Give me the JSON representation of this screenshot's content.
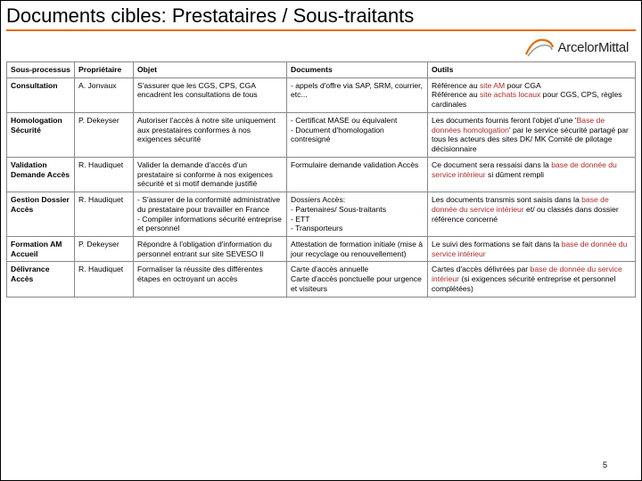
{
  "title": "Documents cibles: Prestataires / Sous-traitants",
  "logo_text": "ArcelorMittal",
  "pagenum": "5",
  "colors": {
    "accent": "#e76a00",
    "highlight": "#b02a2a",
    "border": "#888888"
  },
  "table": {
    "headers": {
      "c1": "Sous-processus",
      "c2": "Propriétaire",
      "c3": "Objet",
      "c4": "Documents",
      "c5": "Outils"
    },
    "rows": [
      {
        "proc": "Consultation",
        "owner": "A. Jonvaux",
        "objet": "S'assurer que les CGS, CPS, CGA encadrent les consultations de tous",
        "docs": "- appels d'offre via SAP, SRM, courrier, etc...",
        "outils_pre": "Référence au ",
        "outils_hl1": "site AM",
        "outils_mid": " pour CGA\nRéférence au ",
        "outils_hl2": "site achats locaux",
        "outils_post": " pour CGS, CPS, règles cardinales"
      },
      {
        "proc": "Homologation Sécurité",
        "owner": "P. Dekeyser",
        "objet": "Autoriser l'accès à notre site uniquement aux prestataires conformes à nos exigences sécurité",
        "docs": "- Certificat MASE ou équivalent\n- Document d'homologation contresigné",
        "outils_pre": "Les documents fournis feront l'objet d'une '",
        "outils_hl1": "Base de données homologation",
        "outils_mid": "' par le service sécurité partagé par tous les acteurs des sites DK/ MK Comité de pilotage décisionnaire",
        "outils_hl2": "",
        "outils_post": ""
      },
      {
        "proc": "Validation Demande Accès",
        "owner": "R. Haudiquet",
        "objet": "Valider la demande d'accès d'un prestataire si conforme à nos exigences sécurité et si motif demande justifié",
        "docs": "Formulaire demande validation Accès",
        "outils_pre": "Ce document sera ressaisi dans la ",
        "outils_hl1": "base de donnée du service intérieur",
        "outils_mid": " si dûment rempli",
        "outils_hl2": "",
        "outils_post": ""
      },
      {
        "proc": "Gestion Dossier Accès",
        "owner": "R. Haudiquet",
        "objet": "- S'assurer de la conformité administrative du prestataire pour travailler en France\n- Compiler informations sécurité entreprise et personnel",
        "docs": "Dossiers Accès:\n- Partenaires/ Sous-traitants\n- ETT\n- Transporteurs",
        "outils_pre": "Les documents transmis sont saisis dans la ",
        "outils_hl1": "base de donnée du service intérieur",
        "outils_mid": " et/ ou classés dans dossier référence concerné",
        "outils_hl2": "",
        "outils_post": ""
      },
      {
        "proc": "Formation AM Accueil",
        "owner": "P. Dekeyser",
        "objet": "Répondre à l'obligation d'information du personnel entrant sur site SEVESO II",
        "docs": "Attestation de formation initiale (mise à jour recyclage ou renouvellement)",
        "outils_pre": "Le suivi des formations se fait dans la ",
        "outils_hl1": "base de donnée du service intérieur",
        "outils_mid": "",
        "outils_hl2": "",
        "outils_post": ""
      },
      {
        "proc": "Délivrance Accès",
        "owner": "R. Haudiquet",
        "objet": "Formaliser la réussite des différentes étapes en octroyant un accès",
        "docs": "Carte d'accès annuelle\nCarte d'accès ponctuelle pour urgence et visiteurs",
        "outils_pre": "Cartes d'accès délivrées par ",
        "outils_hl1": "base de donnée du service intérieur",
        "outils_mid": " (si exigences sécurité entreprise et personnel complétées)",
        "outils_hl2": "",
        "outils_post": ""
      }
    ]
  }
}
